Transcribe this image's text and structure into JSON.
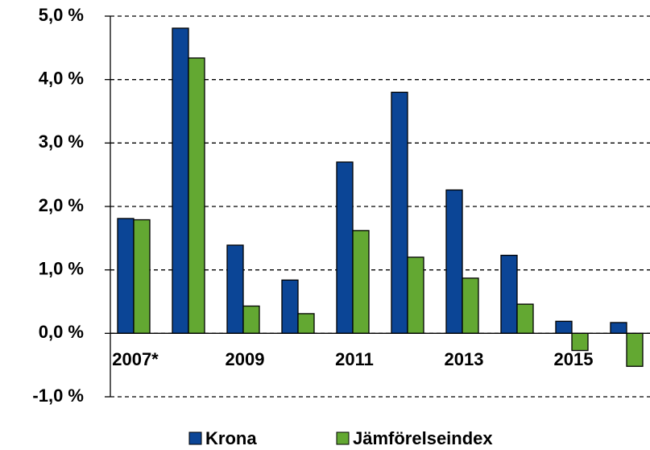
{
  "chart_data": {
    "type": "bar",
    "categories": [
      "2007*",
      null,
      "2009",
      null,
      "2011",
      null,
      "2013",
      null,
      "2015",
      null
    ],
    "series": [
      {
        "name": "Krona",
        "color": "#0b4596",
        "values": [
          1.81,
          4.81,
          1.39,
          0.84,
          2.7,
          3.8,
          2.26,
          1.23,
          0.19,
          0.17
        ]
      },
      {
        "name": "Jämförelseindex",
        "color": "#63a832",
        "values": [
          1.79,
          4.34,
          0.43,
          0.31,
          1.62,
          1.2,
          0.87,
          0.46,
          -0.27,
          -0.52
        ]
      }
    ],
    "ylim": [
      -1,
      5
    ],
    "yticks": [
      {
        "value": -1,
        "label": "-1,0 %"
      },
      {
        "value": 0,
        "label": "0,0 %"
      },
      {
        "value": 1,
        "label": "1,0 %"
      },
      {
        "value": 2,
        "label": "2,0 %"
      },
      {
        "value": 3,
        "label": "3,0 %"
      },
      {
        "value": 4,
        "label": "4,0 %"
      },
      {
        "value": 5,
        "label": "5,0 %"
      }
    ],
    "grid": true
  }
}
